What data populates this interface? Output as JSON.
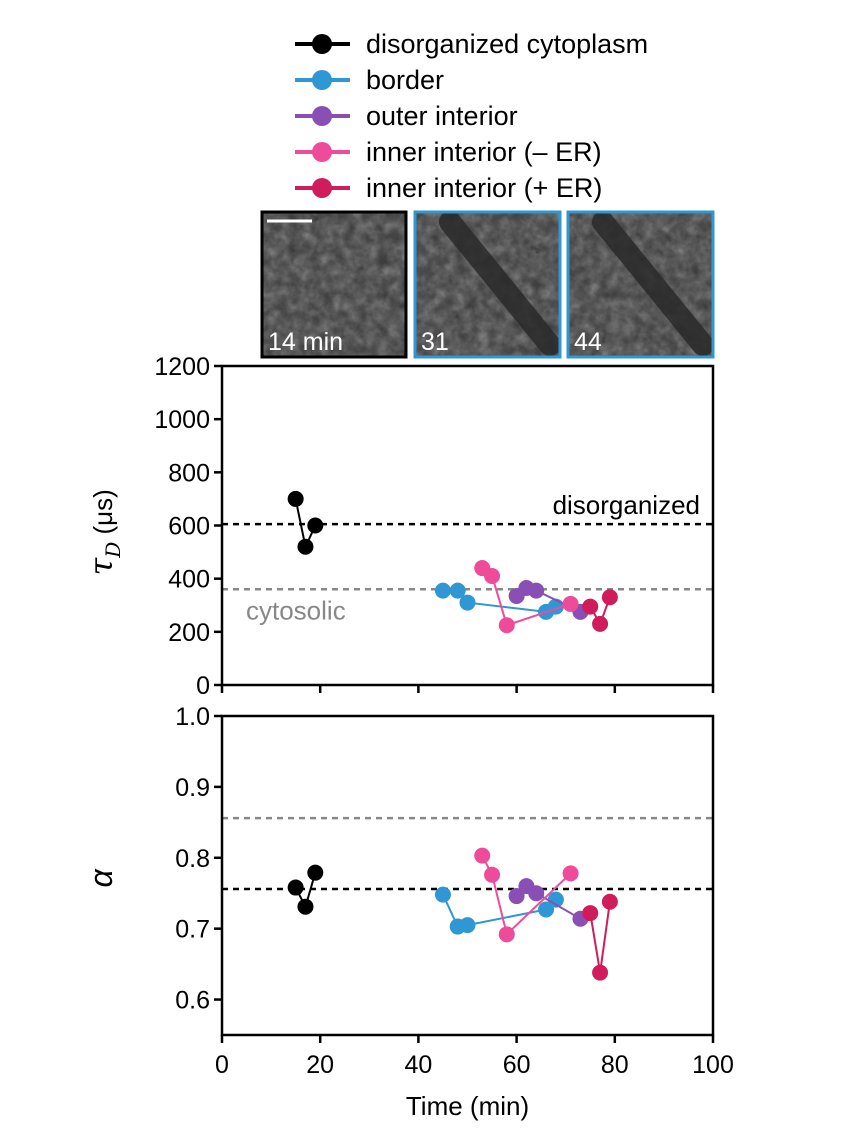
{
  "legend": [
    {
      "label": "disorganized cytoplasm",
      "color": "#000000"
    },
    {
      "label": "border",
      "color": "#2f97d3"
    },
    {
      "label": "outer interior",
      "color": "#8a4fb4"
    },
    {
      "label": "inner interior (– ER)",
      "color": "#ee4b9b"
    },
    {
      "label": "inner interior (+ ER)",
      "color": "#d11c5b"
    }
  ],
  "insets": [
    {
      "label": "14 min",
      "border_color": "#000000",
      "scale_bar": true
    },
    {
      "label": "31",
      "border_color": "#2f97d3",
      "scale_bar": false
    },
    {
      "label": "44",
      "border_color": "#2f97d3",
      "scale_bar": false
    }
  ],
  "chart_data": [
    {
      "type": "line",
      "ylabel": "τ_D (μs)",
      "ylabel_main": "τ",
      "ylabel_sub": "D",
      "ylabel_unit": " (μs)",
      "xlim": [
        0,
        100
      ],
      "ylim": [
        0,
        1200
      ],
      "yticks": [
        0,
        200,
        400,
        600,
        800,
        1000,
        1200
      ],
      "ytick_labels": [
        "0",
        "200",
        "400",
        "600",
        "800",
        "1000",
        "1200"
      ],
      "reference_lines": [
        {
          "y": 605,
          "label": "disorganized",
          "color": "#000000"
        },
        {
          "y": 360,
          "label": "cytosolic",
          "color": "#888888"
        }
      ],
      "series": [
        {
          "name": "disorganized cytoplasm",
          "color": "#000000",
          "x": [
            15,
            17,
            19
          ],
          "y": [
            700,
            520,
            600
          ]
        },
        {
          "name": "border",
          "color": "#2f97d3",
          "x": [
            45,
            48,
            50,
            66,
            68
          ],
          "y": [
            355,
            355,
            310,
            275,
            295
          ]
        },
        {
          "name": "outer interior",
          "color": "#8a4fb4",
          "x": [
            60,
            62,
            64,
            73
          ],
          "y": [
            335,
            365,
            355,
            275
          ]
        },
        {
          "name": "inner interior (– ER)",
          "color": "#ee4b9b",
          "x": [
            53,
            55,
            58,
            71
          ],
          "y": [
            440,
            410,
            225,
            305
          ]
        },
        {
          "name": "inner interior (+ ER)",
          "color": "#d11c5b",
          "x": [
            75,
            77,
            79
          ],
          "y": [
            295,
            230,
            330
          ]
        }
      ]
    },
    {
      "type": "line",
      "xlabel": "Time (min)",
      "ylabel": "α",
      "xlim": [
        0,
        100
      ],
      "ylim": [
        0.55,
        1.0
      ],
      "xticks": [
        0,
        20,
        40,
        60,
        80,
        100
      ],
      "xtick_labels": [
        "0",
        "20",
        "40",
        "60",
        "80",
        "100"
      ],
      "yticks": [
        0.6,
        0.7,
        0.8,
        0.9,
        1.0
      ],
      "ytick_labels": [
        "0.6",
        "0.7",
        "0.8",
        "0.9",
        "1.0"
      ],
      "reference_lines": [
        {
          "y": 0.756,
          "color": "#000000"
        },
        {
          "y": 0.856,
          "color": "#888888"
        }
      ],
      "series": [
        {
          "name": "disorganized cytoplasm",
          "color": "#000000",
          "x": [
            15,
            17,
            19
          ],
          "y": [
            0.758,
            0.731,
            0.779
          ]
        },
        {
          "name": "border",
          "color": "#2f97d3",
          "x": [
            45,
            48,
            50,
            66,
            68
          ],
          "y": [
            0.748,
            0.703,
            0.705,
            0.727,
            0.741
          ]
        },
        {
          "name": "outer interior",
          "color": "#8a4fb4",
          "x": [
            60,
            62,
            64,
            73
          ],
          "y": [
            0.746,
            0.76,
            0.75,
            0.714
          ]
        },
        {
          "name": "inner interior (– ER)",
          "color": "#ee4b9b",
          "x": [
            53,
            55,
            58,
            71
          ],
          "y": [
            0.803,
            0.776,
            0.692,
            0.778
          ]
        },
        {
          "name": "inner interior (+ ER)",
          "color": "#d11c5b",
          "x": [
            75,
            77,
            79
          ],
          "y": [
            0.722,
            0.638,
            0.738
          ]
        }
      ]
    }
  ]
}
